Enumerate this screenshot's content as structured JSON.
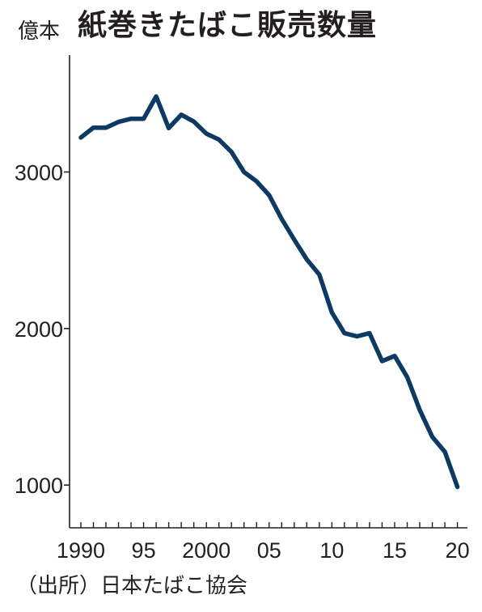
{
  "header": {
    "title": "紙巻きたばこ販売数量",
    "unit": "億本"
  },
  "footer": {
    "source": "（出所）日本たばこ協会"
  },
  "chart_data": {
    "type": "line",
    "title": "紙巻きたばこ販売数量",
    "ylabel": "億本",
    "xlabel": "",
    "x": [
      1990,
      1991,
      1992,
      1993,
      1994,
      1995,
      1996,
      1997,
      1998,
      1999,
      2000,
      2001,
      2002,
      2003,
      2004,
      2005,
      2006,
      2007,
      2008,
      2009,
      2010,
      2011,
      2012,
      2013,
      2014,
      2015,
      2016,
      2017,
      2018,
      2019,
      2020
    ],
    "series": [
      {
        "name": "",
        "color": "#0d3a63",
        "values": [
          3220,
          3283,
          3283,
          3320,
          3340,
          3340,
          3483,
          3280,
          3366,
          3322,
          3245,
          3207,
          3128,
          3000,
          2940,
          2852,
          2700,
          2568,
          2442,
          2344,
          2102,
          1970,
          1950,
          1970,
          1792,
          1825,
          1690,
          1480,
          1308,
          1212,
          988
        ]
      }
    ],
    "xticks": [
      {
        "value": 1990,
        "label": "1990"
      },
      {
        "value": 1995,
        "label": "95"
      },
      {
        "value": 2000,
        "label": "2000"
      },
      {
        "value": 2005,
        "label": "05"
      },
      {
        "value": 2010,
        "label": "10"
      },
      {
        "value": 2015,
        "label": "15"
      },
      {
        "value": 2020,
        "label": "20"
      }
    ],
    "yticks": [
      {
        "value": 1000,
        "label": "1000"
      },
      {
        "value": 2000,
        "label": "2000"
      },
      {
        "value": 3000,
        "label": "3000"
      }
    ],
    "xlim": [
      1989.1,
      2020.8
    ],
    "ylim": [
      727,
      3747
    ],
    "grid": false,
    "legend": "none",
    "axis_color": "#231f20"
  }
}
